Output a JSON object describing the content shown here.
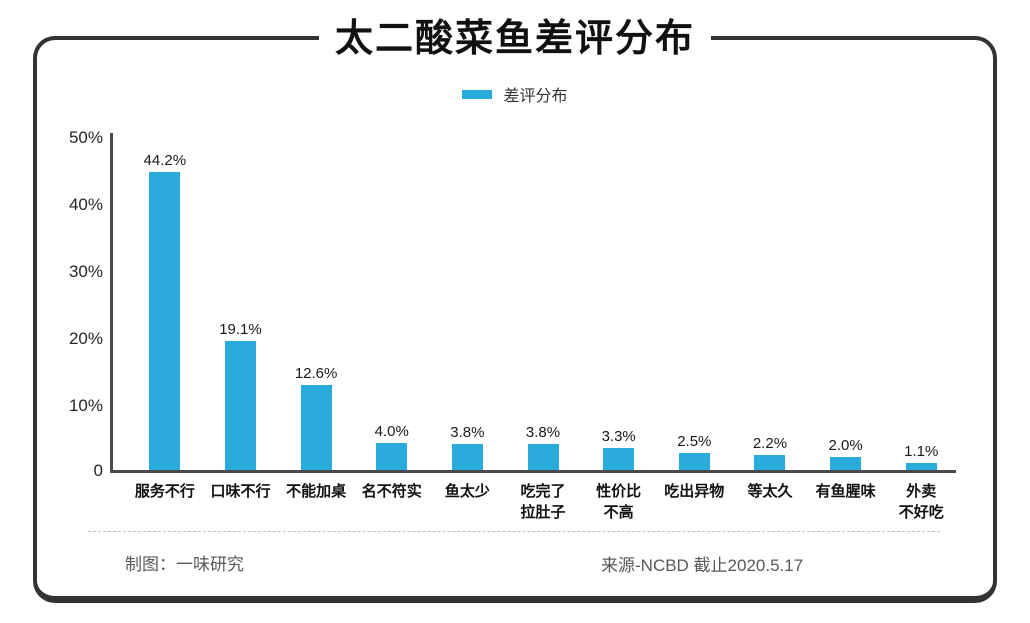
{
  "title": "太二酸菜鱼差评分布",
  "legend": {
    "label": "差评分布",
    "marker_color": "#29abdc"
  },
  "footer": {
    "left": "制图：一味研究",
    "right": "来源-NCBD  截止2020.5.17"
  },
  "chart_data": {
    "type": "bar",
    "title": "太二酸菜鱼差评分布",
    "legend_entries": [
      "差评分布"
    ],
    "legend_position": "top",
    "categories": [
      "服务不行",
      "口味不行",
      "不能加桌",
      "名不符实",
      "鱼太少",
      "吃完了\n拉肚子",
      "性价比\n不高",
      "吃出异物",
      "等太久",
      "有鱼腥味",
      "外卖\n不好吃"
    ],
    "values": [
      44.2,
      19.1,
      12.6,
      4.0,
      3.8,
      3.8,
      3.3,
      2.5,
      2.2,
      2.0,
      1.1
    ],
    "value_labels": [
      "44.2%",
      "19.1%",
      "12.6%",
      "4.0%",
      "3.8%",
      "3.8%",
      "3.3%",
      "2.5%",
      "2.2%",
      "2.0%",
      "1.1%"
    ],
    "ylabel": "",
    "xlabel": "",
    "ylim": [
      0,
      50
    ],
    "yticks": [
      "50%",
      "40%",
      "30%",
      "20%",
      "10%",
      "0"
    ],
    "grid": false,
    "bar_color": "#29abdc",
    "axis_color": "#4a4a4a"
  }
}
